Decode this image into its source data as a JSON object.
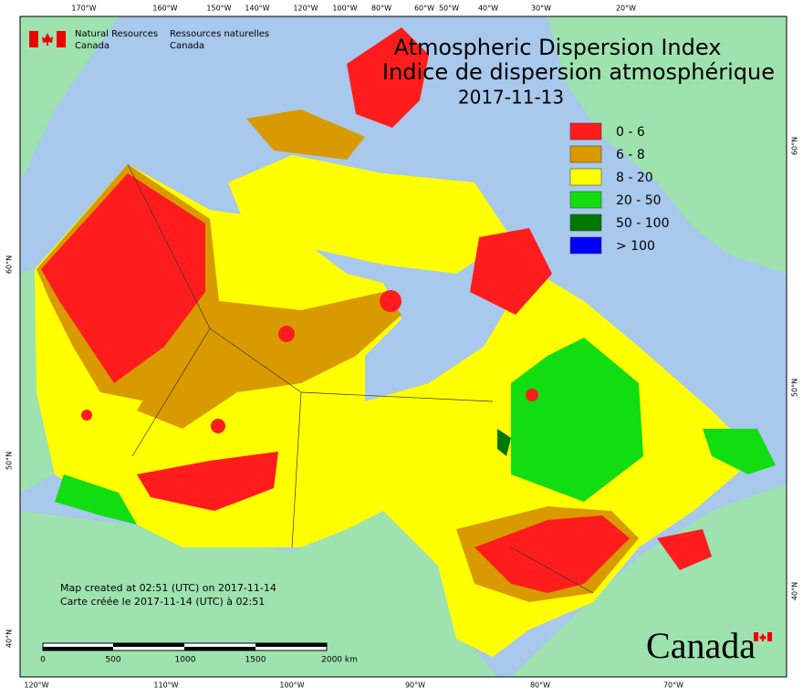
{
  "header": {
    "en_org": "Natural Resources",
    "en_country": "Canada",
    "fr_org": "Ressources naturelles",
    "fr_country": "Canada"
  },
  "title": {
    "en": "Atmospheric Dispersion Index",
    "fr": "Indice de dispersion atmosphérique",
    "date": "2017-11-13"
  },
  "legend": [
    {
      "label": "0 - 6",
      "color": "#ff1c1c"
    },
    {
      "label": "6 - 8",
      "color": "#d99a00"
    },
    {
      "label": "8 - 20",
      "color": "#ffff00"
    },
    {
      "label": "20 - 50",
      "color": "#11dd11"
    },
    {
      "label": "50 - 100",
      "color": "#007700"
    },
    {
      "label": "> 100",
      "color": "#0000ff"
    }
  ],
  "top_longitudes": [
    "170°W",
    "160°W",
    "150°W",
    "140°W",
    "120°W",
    "100°W",
    "80°W",
    "60°W",
    "50°W",
    "40°W",
    "30°W",
    "20°W"
  ],
  "bottom_longitudes": [
    "120°W",
    "110°W",
    "100°W",
    "90°W",
    "80°W",
    "70°W"
  ],
  "left_latitudes": [
    "60°N",
    "50°N",
    "40°N"
  ],
  "right_latitudes": [
    "60°N",
    "50°N",
    "40°N"
  ],
  "credits": [
    "Map created at 02:51 (UTC) on 2017-11-14",
    "Carte créée le 2017-11-14 (UTC) à 02:51"
  ],
  "scale_bar": [
    "0",
    "500",
    "1000",
    "1500",
    "2000 km"
  ],
  "wordmark": "Canada"
}
